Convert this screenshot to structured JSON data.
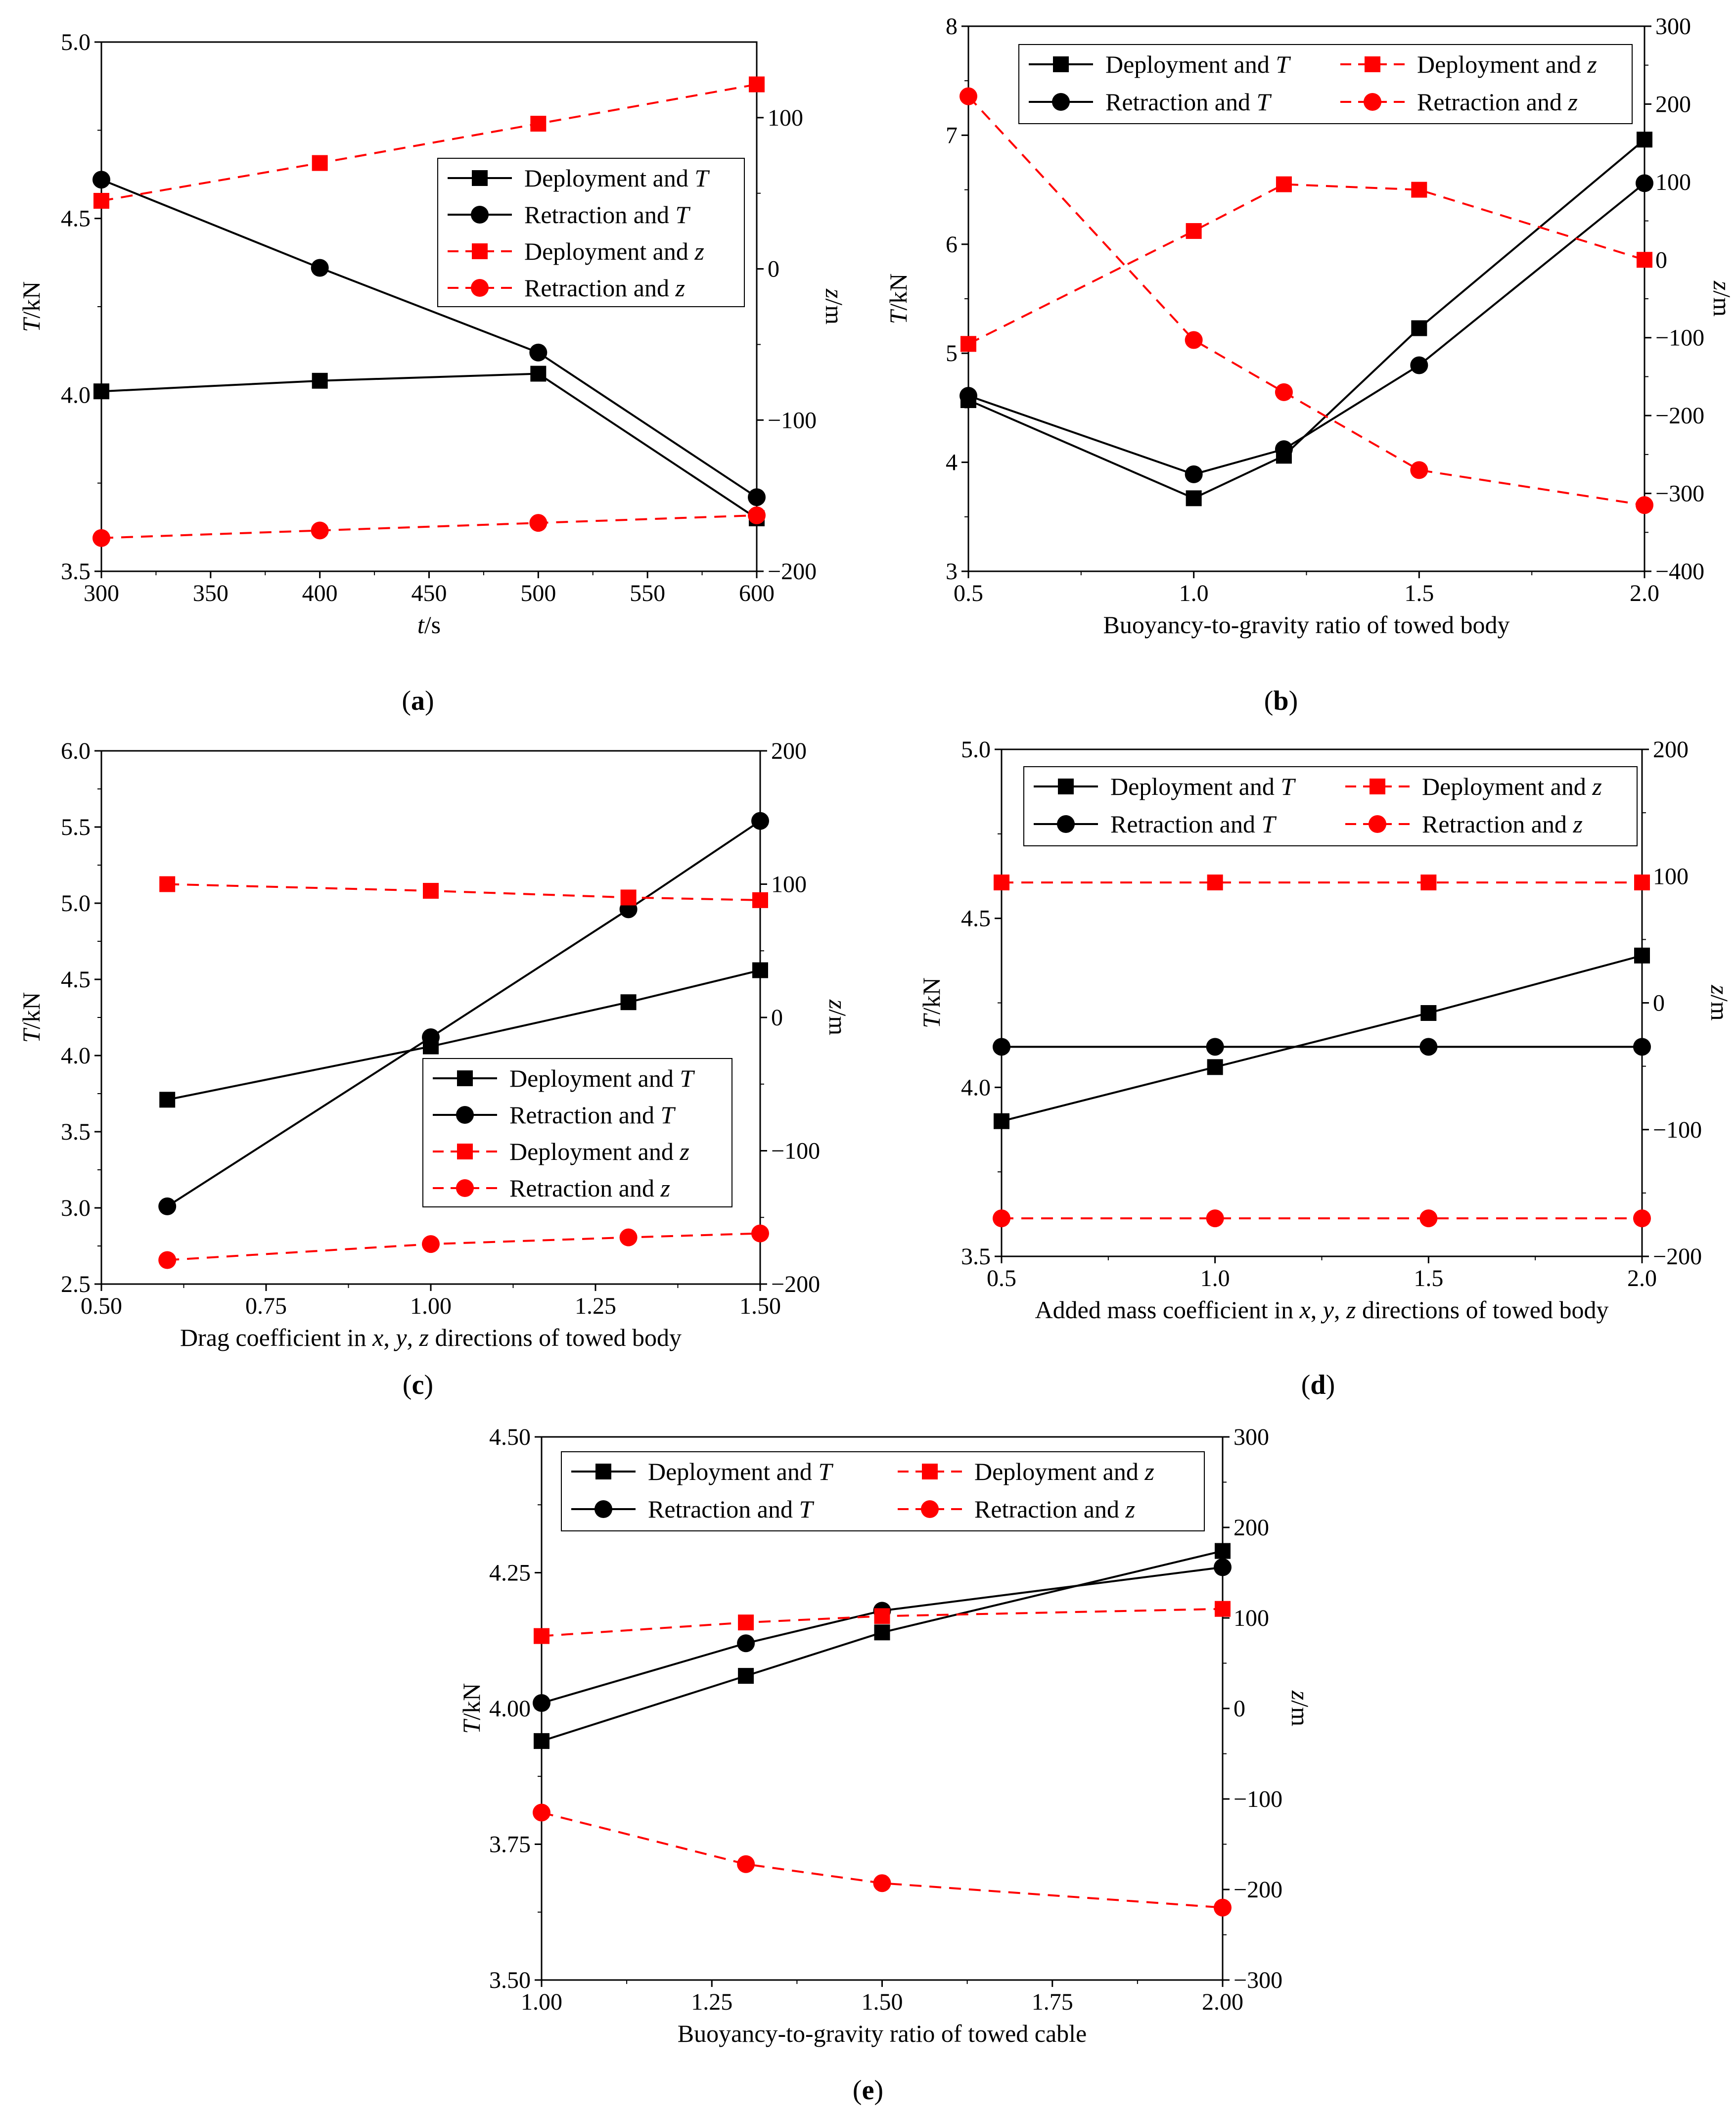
{
  "colors": {
    "black": "#000000",
    "red": "#ff0000"
  },
  "legend_labels": {
    "dep_T": "Deployment and ",
    "ret_T": "Retraction and ",
    "dep_z": "Deployment and ",
    "ret_z": "Retraction and ",
    "T_sym": "T",
    "z_sym": "z"
  },
  "chart_data": [
    {
      "panel": "a",
      "caption": "(a)",
      "type": "line",
      "xlabel": "t/s",
      "ylabel_left": "T/kN",
      "ylabel_right": "z/m",
      "xlim": [
        300,
        600
      ],
      "xticks": [
        "300",
        "350",
        "400",
        "450",
        "500",
        "550",
        "600"
      ],
      "ylim_left": [
        3.5,
        5.0
      ],
      "yticks_left": [
        "3.5",
        "4.0",
        "4.5",
        "5.0"
      ],
      "ylim_right": [
        -200,
        150
      ],
      "yticks_right": [
        "−200",
        "−100",
        "0",
        "100"
      ],
      "legend": "upper-right-inside",
      "x": [
        300,
        400,
        500,
        600
      ],
      "series": [
        {
          "name": "Deployment and T",
          "axis": "left",
          "style": "solid-square-black",
          "values": [
            4.01,
            4.04,
            4.06,
            3.65
          ]
        },
        {
          "name": "Retraction and T",
          "axis": "left",
          "style": "solid-circle-black",
          "values": [
            4.61,
            4.36,
            4.12,
            3.71
          ]
        },
        {
          "name": "Deployment and z",
          "axis": "right",
          "style": "dash-square-red",
          "values": [
            45,
            70,
            96,
            122
          ]
        },
        {
          "name": "Retraction and z",
          "axis": "right",
          "style": "dash-circle-red",
          "values": [
            -178,
            -173,
            -168,
            -163
          ]
        }
      ]
    },
    {
      "panel": "b",
      "caption": "(b)",
      "type": "line",
      "xlabel": "Buoyancy-to-gravity ratio of towed body",
      "ylabel_left": "T/kN",
      "ylabel_right": "z/m",
      "xlim": [
        0.5,
        2.0
      ],
      "xticks": [
        "0.5",
        "1.0",
        "1.5",
        "2.0"
      ],
      "ylim_left": [
        3,
        8
      ],
      "yticks_left": [
        "3",
        "4",
        "5",
        "6",
        "7",
        "8"
      ],
      "ylim_right": [
        -400,
        300
      ],
      "yticks_right": [
        "−400",
        "−300",
        "−200",
        "−100",
        "0",
        "100",
        "200",
        "300"
      ],
      "legend": "top-two-columns",
      "x": [
        0.5,
        1.0,
        1.2,
        1.5,
        2.0
      ],
      "series": [
        {
          "name": "Deployment and T",
          "axis": "left",
          "style": "solid-square-black",
          "values": [
            4.57,
            3.67,
            4.06,
            5.23,
            6.96
          ]
        },
        {
          "name": "Retraction and T",
          "axis": "left",
          "style": "solid-circle-black",
          "values": [
            4.61,
            3.89,
            4.12,
            4.89,
            6.56
          ]
        },
        {
          "name": "Deployment and z",
          "axis": "right",
          "style": "dash-square-red",
          "values": [
            -108,
            37,
            97,
            90,
            0
          ]
        },
        {
          "name": "Retraction and z",
          "axis": "right",
          "style": "dash-circle-red",
          "values": [
            210,
            -103,
            -170,
            -270,
            -315
          ]
        }
      ]
    },
    {
      "panel": "c",
      "caption": "(c)",
      "type": "line",
      "xlabel": "Drag coefficient in x, y, z directions of towed body",
      "ylabel_left": "T/kN",
      "ylabel_right": "z/m",
      "xlim": [
        0.5,
        1.5
      ],
      "xticks": [
        "0.50",
        "0.75",
        "1.00",
        "1.25",
        "1.50"
      ],
      "ylim_left": [
        2.5,
        6.0
      ],
      "yticks_left": [
        "2.5",
        "3.0",
        "3.5",
        "4.0",
        "4.5",
        "5.0",
        "5.5",
        "6.0"
      ],
      "ylim_right": [
        -200,
        200
      ],
      "yticks_right": [
        "−200",
        "−100",
        "0",
        "100",
        "200"
      ],
      "legend": "lower-right-inside",
      "x": [
        0.6,
        1.0,
        1.3,
        1.5
      ],
      "series": [
        {
          "name": "Deployment and T",
          "axis": "left",
          "style": "solid-square-black",
          "values": [
            3.71,
            4.06,
            4.35,
            4.56
          ]
        },
        {
          "name": "Retraction and T",
          "axis": "left",
          "style": "solid-circle-black",
          "values": [
            3.01,
            4.12,
            4.96,
            5.54
          ]
        },
        {
          "name": "Deployment and z",
          "axis": "right",
          "style": "dash-square-red",
          "values": [
            100,
            95,
            90,
            88
          ]
        },
        {
          "name": "Retraction and z",
          "axis": "right",
          "style": "dash-circle-red",
          "values": [
            -182,
            -170,
            -165,
            -162
          ]
        }
      ]
    },
    {
      "panel": "d",
      "caption": "(d)",
      "type": "line",
      "xlabel": "Added mass coefficient in x, y, z directions of towed body",
      "ylabel_left": "T/kN",
      "ylabel_right": "z/m",
      "xlim": [
        0.5,
        2.0
      ],
      "xticks": [
        "0.5",
        "1.0",
        "1.5",
        "2.0"
      ],
      "ylim_left": [
        3.5,
        5.0
      ],
      "yticks_left": [
        "3.5",
        "4.0",
        "4.5",
        "5.0"
      ],
      "ylim_right": [
        -200,
        200
      ],
      "yticks_right": [
        "−200",
        "−100",
        "0",
        "100",
        "200"
      ],
      "legend": "top-two-columns",
      "x": [
        0.5,
        1.0,
        1.5,
        2.0
      ],
      "series": [
        {
          "name": "Deployment and T",
          "axis": "left",
          "style": "solid-square-black",
          "values": [
            3.9,
            4.06,
            4.22,
            4.39
          ]
        },
        {
          "name": "Retraction and T",
          "axis": "left",
          "style": "solid-circle-black",
          "values": [
            4.12,
            4.12,
            4.12,
            4.12
          ]
        },
        {
          "name": "Deployment and z",
          "axis": "right",
          "style": "dash-square-red",
          "values": [
            95,
            95,
            95,
            95
          ]
        },
        {
          "name": "Retraction and z",
          "axis": "right",
          "style": "dash-circle-red",
          "values": [
            -170,
            -170,
            -170,
            -170
          ]
        }
      ]
    },
    {
      "panel": "e",
      "caption": "(e)",
      "type": "line",
      "xlabel": "Buoyancy-to-gravity ratio of towed cable",
      "ylabel_left": "T/kN",
      "ylabel_right": "z/m",
      "xlim": [
        1.0,
        2.0
      ],
      "xticks": [
        "1.00",
        "1.25",
        "1.50",
        "1.75",
        "2.00"
      ],
      "ylim_left": [
        3.5,
        4.5
      ],
      "yticks_left": [
        "3.50",
        "3.75",
        "4.00",
        "4.25",
        "4.50"
      ],
      "ylim_right": [
        -300,
        300
      ],
      "yticks_right": [
        "−300",
        "−200",
        "−100",
        "0",
        "100",
        "200",
        "300"
      ],
      "legend": "top-two-columns",
      "x": [
        1.0,
        1.3,
        1.5,
        2.0
      ],
      "series": [
        {
          "name": "Deployment and T",
          "axis": "left",
          "style": "solid-square-black",
          "values": [
            3.94,
            4.06,
            4.14,
            4.29
          ]
        },
        {
          "name": "Retraction and T",
          "axis": "left",
          "style": "solid-circle-black",
          "values": [
            4.01,
            4.12,
            4.18,
            4.26
          ]
        },
        {
          "name": "Deployment and z",
          "axis": "right",
          "style": "dash-square-red",
          "values": [
            80,
            95,
            102,
            110
          ]
        },
        {
          "name": "Retraction and z",
          "axis": "right",
          "style": "dash-circle-red",
          "values": [
            -115,
            -172,
            -193,
            -220
          ]
        }
      ]
    }
  ]
}
